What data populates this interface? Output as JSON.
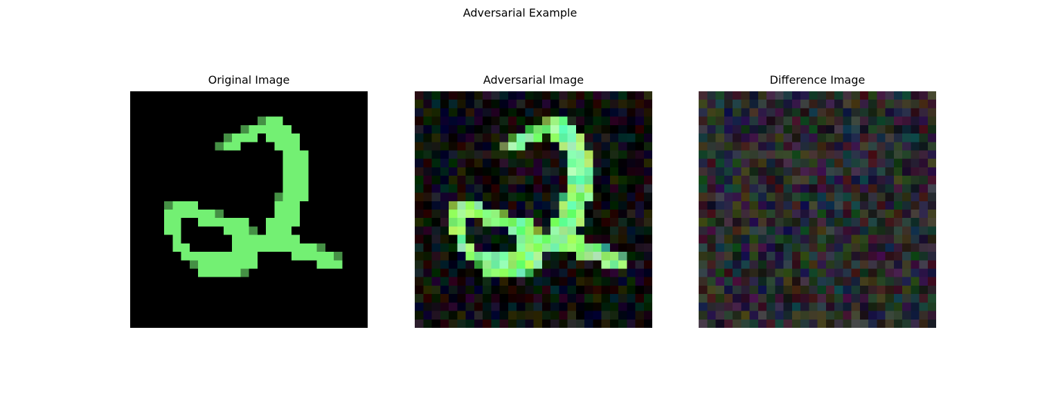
{
  "figure": {
    "title": "Adversarial Example"
  },
  "panels": [
    {
      "id": "original",
      "title": "Original Image"
    },
    {
      "id": "adversarial",
      "title": "Adversarial Image"
    },
    {
      "id": "difference",
      "title": "Difference Image"
    }
  ],
  "digit_color": "#73f073",
  "background_color": "#000000"
}
